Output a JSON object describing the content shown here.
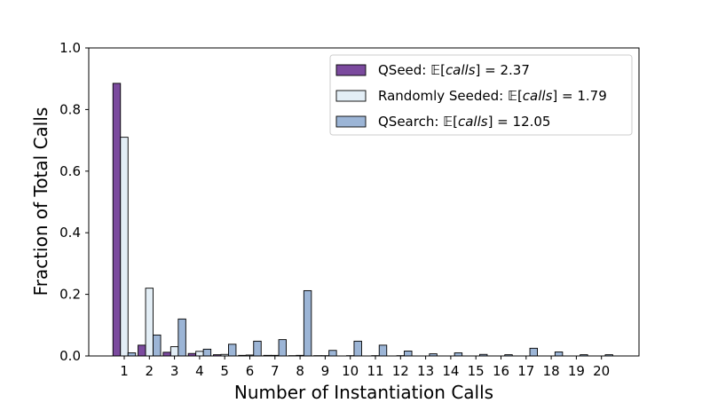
{
  "chart_data": {
    "type": "bar",
    "title": "",
    "xlabel": "Number of Instantiation Calls",
    "ylabel": "Fraction of Total Calls",
    "ylim": [
      0,
      1.0
    ],
    "yticks": [
      "0.0",
      "0.2",
      "0.4",
      "0.6",
      "0.8",
      "1.0"
    ],
    "categories": [
      "1",
      "2",
      "3",
      "4",
      "5",
      "6",
      "7",
      "8",
      "9",
      "10",
      "11",
      "12",
      "13",
      "14",
      "15",
      "16",
      "17",
      "18",
      "19",
      "20"
    ],
    "legend_position": "top-right",
    "grid": false,
    "series": [
      {
        "name": "QSeed",
        "legend_label": "QSeed: 𝔼[calls] = 2.37",
        "legend_prefix": "QSeed: ",
        "legend_value": "2.37",
        "color": "#7b4a9e",
        "values": [
          0.885,
          0.035,
          0.012,
          0.008,
          0.004,
          0.002,
          0.002,
          0.001,
          0.001,
          0.0,
          0.0,
          0.0,
          0.0,
          0.0,
          0.0,
          0.0,
          0.0,
          0.0,
          0.0,
          0.0
        ]
      },
      {
        "name": "Randomly Seeded",
        "legend_label": "Randomly Seeded: 𝔼[calls] = 1.79",
        "legend_prefix": "Randomly Seeded: ",
        "legend_value": "1.79",
        "color": "#e3eef6",
        "values": [
          0.71,
          0.22,
          0.03,
          0.015,
          0.005,
          0.003,
          0.002,
          0.002,
          0.001,
          0.001,
          0.001,
          0.001,
          0.0,
          0.0,
          0.0,
          0.0,
          0.0,
          0.0,
          0.0,
          0.0
        ]
      },
      {
        "name": "QSearch",
        "legend_label": "QSearch: 𝔼[calls] = 12.05",
        "legend_prefix": "QSearch: ",
        "legend_value": "12.05",
        "color": "#9cb5d6",
        "values": [
          0.01,
          0.068,
          0.12,
          0.022,
          0.038,
          0.048,
          0.053,
          0.212,
          0.018,
          0.048,
          0.035,
          0.016,
          0.007,
          0.01,
          0.005,
          0.004,
          0.025,
          0.013,
          0.004,
          0.004
        ]
      }
    ]
  }
}
